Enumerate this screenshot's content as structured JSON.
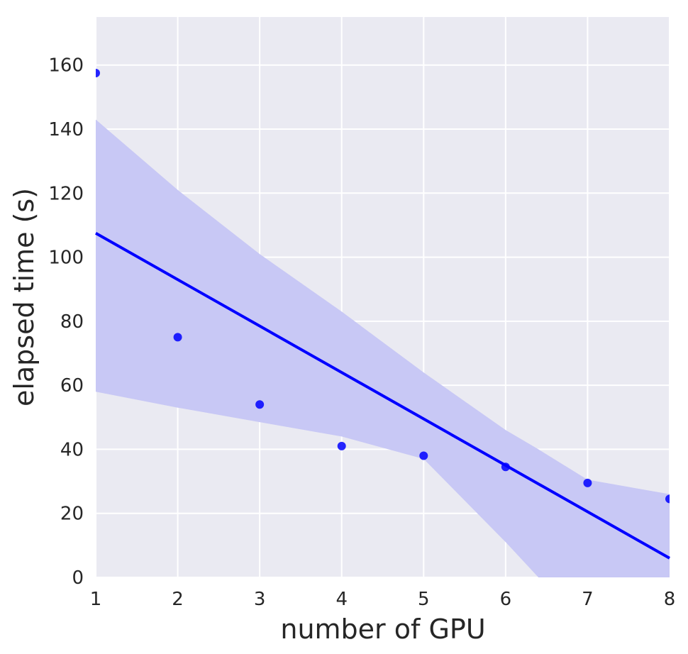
{
  "chart_data": {
    "type": "scatter",
    "title": "",
    "xlabel": "number of GPU",
    "ylabel": "elapsed time (s)",
    "xlim": [
      1,
      8
    ],
    "ylim": [
      0,
      175
    ],
    "xticks": [
      1,
      2,
      3,
      4,
      5,
      6,
      7,
      8
    ],
    "yticks": [
      0,
      20,
      40,
      60,
      80,
      100,
      120,
      140,
      160
    ],
    "grid": true,
    "background": "#eaeaf2",
    "grid_color": "#ffffff",
    "series_color": "#0000ff",
    "band_color": "#c8c8f5",
    "points": [
      {
        "x": 1,
        "y": 157.5
      },
      {
        "x": 2,
        "y": 75
      },
      {
        "x": 3,
        "y": 54
      },
      {
        "x": 4,
        "y": 41
      },
      {
        "x": 5,
        "y": 38
      },
      {
        "x": 6,
        "y": 34.5
      },
      {
        "x": 7,
        "y": 29.5
      },
      {
        "x": 8,
        "y": 24.5
      }
    ],
    "regression_line": {
      "x": [
        1,
        8
      ],
      "y": [
        107.5,
        6
      ]
    },
    "confidence_band": {
      "x": [
        1,
        2,
        3,
        4,
        5,
        6,
        6.4,
        7,
        8
      ],
      "upper": [
        143,
        121,
        101,
        83,
        64,
        46,
        40,
        30.5,
        26
      ],
      "lower": [
        58,
        53,
        48.5,
        44,
        37,
        11,
        0,
        0,
        0
      ]
    }
  }
}
